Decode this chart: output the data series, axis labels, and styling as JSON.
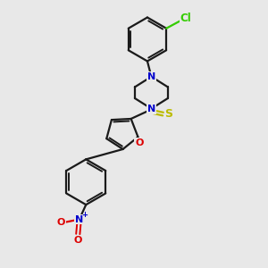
{
  "background_color": "#e8e8e8",
  "bond_color": "#1a1a1a",
  "N_color": "#0000cc",
  "O_color": "#dd0000",
  "S_color": "#bbbb00",
  "Cl_color": "#33cc00",
  "figsize": [
    3.0,
    3.0
  ],
  "dpi": 100,
  "xlim": [
    0,
    10
  ],
  "ylim": [
    0,
    10
  ]
}
